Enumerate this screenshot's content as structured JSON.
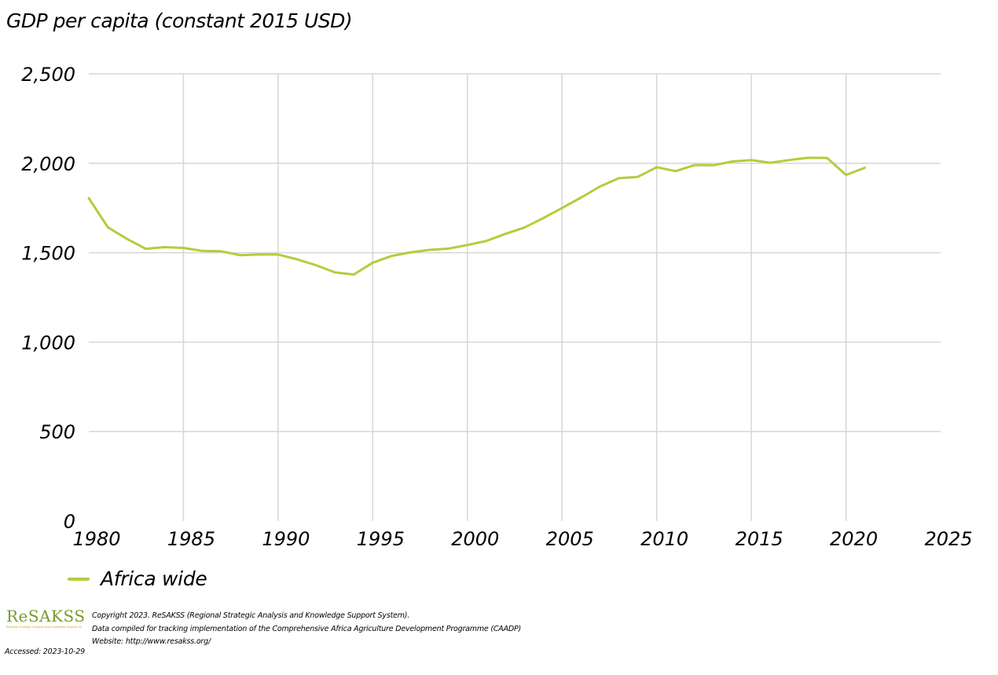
{
  "chart_data": {
    "type": "line",
    "title": "GDP per capita (constant 2015 USD)",
    "xlabel": "",
    "ylabel": "",
    "xlim": [
      1980,
      2025
    ],
    "ylim": [
      0,
      2500
    ],
    "x_ticks": [
      "1980",
      "1985",
      "1990",
      "1995",
      "2000",
      "2005",
      "2010",
      "2015",
      "2020",
      "2025"
    ],
    "y_ticks": [
      "0",
      "500",
      "1,000",
      "1,500",
      "2,000",
      "2,500"
    ],
    "grid": true,
    "legend_position": "bottom-left",
    "series": [
      {
        "name": "Africa wide",
        "color": "#b5cc3c",
        "x": [
          1980,
          1981,
          1982,
          1983,
          1984,
          1985,
          1986,
          1987,
          1988,
          1989,
          1990,
          1991,
          1992,
          1993,
          1994,
          1995,
          1996,
          1997,
          1998,
          1999,
          2000,
          2001,
          2002,
          2003,
          2004,
          2005,
          2006,
          2007,
          2008,
          2009,
          2010,
          2011,
          2012,
          2013,
          2014,
          2015,
          2016,
          2017,
          2018,
          2019,
          2020,
          2021
        ],
        "y": [
          1805,
          1643,
          1578,
          1522,
          1531,
          1527,
          1510,
          1508,
          1486,
          1490,
          1490,
          1463,
          1430,
          1390,
          1378,
          1444,
          1482,
          1502,
          1516,
          1523,
          1543,
          1566,
          1605,
          1640,
          1693,
          1750,
          1808,
          1870,
          1917,
          1924,
          1978,
          1956,
          1990,
          1989,
          2010,
          2018,
          2003,
          2018,
          2031,
          2030,
          1935,
          1975
        ]
      }
    ]
  },
  "footer": {
    "logo_text": "ReSAKSS",
    "logo_tagline": "Regional Strategic Analysis and Knowledge Support System",
    "copyright_line1": "Copyright 2023. ReSAKSS (Regional Strategic Analysis and Knowledge Support System).",
    "copyright_line2": "Data compiled for tracking implementation of the Comprehensive Africa Agriculture Development Programme (CAADP)",
    "copyright_line3": "Website: http://www.resakss.org/",
    "accessed": "Accessed: 2023-10-29"
  }
}
